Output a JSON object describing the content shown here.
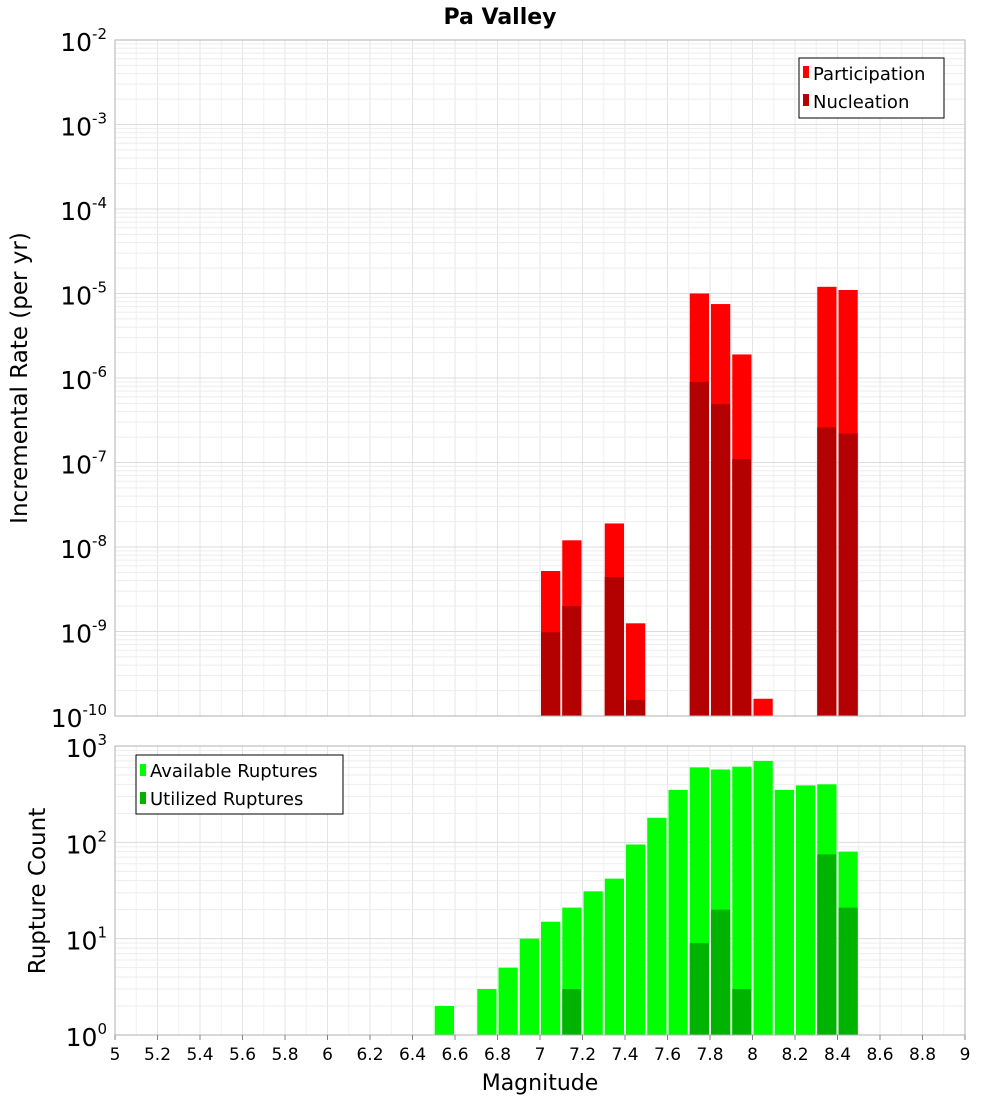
{
  "chart_data": [
    {
      "type": "bar",
      "title": "Pa Valley",
      "ylabel": "Incremental Rate (per yr)",
      "xlabel": "",
      "xlim": [
        5,
        9
      ],
      "ylim_exp": [
        -10,
        -2
      ],
      "yscale": "log",
      "bin_width": 0.1,
      "grid": true,
      "legend_position": "top-right",
      "legend": [
        "Participation",
        "Nucleation"
      ],
      "colors": {
        "participation": "#ff0000",
        "nucleation": "#b30000"
      },
      "series": [
        {
          "name": "Participation",
          "x": [
            7.05,
            7.15,
            7.35,
            7.45,
            7.75,
            7.85,
            7.95,
            8.05,
            8.35,
            8.45
          ],
          "values": [
            5.2e-09,
            1.2e-08,
            1.9e-08,
            1.25e-09,
            1e-05,
            7.5e-06,
            1.9e-06,
            1.6e-10,
            1.2e-05,
            1.1e-05
          ]
        },
        {
          "name": "Nucleation",
          "x": [
            7.05,
            7.15,
            7.35,
            7.45,
            7.75,
            7.85,
            7.95,
            8.35,
            8.45
          ],
          "values": [
            9.8e-10,
            2e-09,
            4.4e-09,
            1.55e-10,
            9e-07,
            4.9e-07,
            1.1e-07,
            2.6e-07,
            2.2e-07
          ]
        }
      ]
    },
    {
      "type": "bar",
      "title": "",
      "ylabel": "Rupture Count",
      "xlabel": "Magnitude",
      "xlim": [
        5,
        9
      ],
      "ylim_exp": [
        0,
        3
      ],
      "yscale": "log",
      "bin_width": 0.1,
      "grid": true,
      "legend_position": "top-left",
      "legend": [
        "Available Ruptures",
        "Utilized Ruptures"
      ],
      "colors": {
        "available": "#00ff00",
        "utilized": "#00b300"
      },
      "xticks": [
        "5",
        "5.2",
        "5.4",
        "5.6",
        "5.8",
        "6",
        "6.2",
        "6.4",
        "6.6",
        "6.8",
        "7",
        "7.2",
        "7.4",
        "7.6",
        "7.8",
        "8",
        "8.2",
        "8.4",
        "8.6",
        "8.8",
        "9"
      ],
      "series": [
        {
          "name": "Available Ruptures",
          "x": [
            6.55,
            6.75,
            6.85,
            6.95,
            7.05,
            7.15,
            7.25,
            7.35,
            7.45,
            7.55,
            7.65,
            7.75,
            7.85,
            7.95,
            8.05,
            8.15,
            8.25,
            8.35,
            8.45
          ],
          "values": [
            2,
            3,
            5,
            10,
            15,
            21,
            31,
            42,
            95,
            180,
            350,
            600,
            570,
            610,
            700,
            350,
            390,
            400,
            80
          ]
        },
        {
          "name": "Utilized Ruptures",
          "x": [
            7.05,
            7.15,
            7.35,
            7.45,
            7.65,
            7.75,
            7.85,
            7.95,
            8.05,
            8.25,
            8.35,
            8.45
          ],
          "values": [
            1,
            3,
            1,
            1,
            1,
            9,
            20,
            3,
            1,
            1,
            75,
            21
          ]
        }
      ]
    }
  ]
}
